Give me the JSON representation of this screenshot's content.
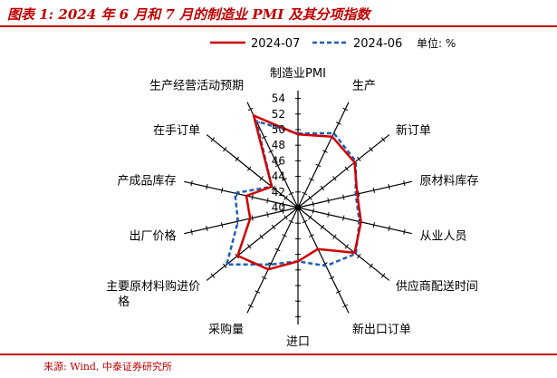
{
  "header": {
    "title": "图表 1: 2024 年 6 月和 7 月的制造业 PMI 及其分项指数"
  },
  "footer": {
    "source": "来源: Wind, 中泰证券研究所"
  },
  "colors": {
    "accent": "#c00000",
    "series_1": "#d00000",
    "series_2": "#1f5fb4",
    "axis": "#000000"
  },
  "chart_data": {
    "type": "radar",
    "unit": "单位: %",
    "categories": [
      "制造业PMI",
      "生产",
      "新订单",
      "原材料库存",
      "从业人员",
      "供应商配送时间",
      "新出口订单",
      "进口",
      "采购量",
      "主要原材料购进价格",
      "出厂价格",
      "产成品库存",
      "在手订单",
      "生产经营活动预期"
    ],
    "ticks": [
      40,
      42,
      44,
      46,
      48,
      50,
      52,
      54
    ],
    "range": [
      40,
      55
    ],
    "legend_position": "top",
    "grid": false,
    "series": [
      {
        "name": "2024-07",
        "style": "solid",
        "values": [
          49.4,
          50.1,
          49.3,
          47.8,
          48.3,
          49.3,
          45.9,
          46.9,
          48.8,
          49.9,
          46.3,
          46.8,
          44.3,
          53.1
        ]
      },
      {
        "name": "2024-06",
        "style": "dashed",
        "values": [
          49.5,
          50.6,
          49.5,
          47.6,
          48.1,
          49.5,
          48.3,
          46.9,
          48.1,
          51.7,
          47.9,
          48.3,
          44.3,
          52.3
        ]
      }
    ]
  }
}
